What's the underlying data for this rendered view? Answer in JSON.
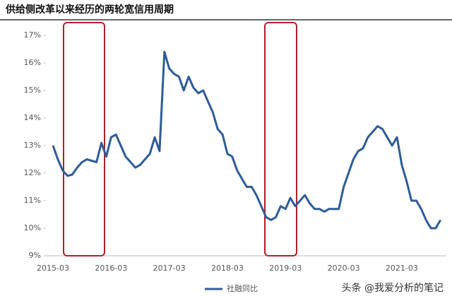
{
  "chart_data": {
    "type": "line",
    "title": "供给侧改革以来经历的两轮宽信用周期",
    "categories": [
      "2015-03",
      null,
      null,
      null,
      null,
      null,
      null,
      null,
      null,
      null,
      null,
      null,
      "2016-03",
      null,
      null,
      null,
      null,
      null,
      null,
      null,
      null,
      null,
      null,
      null,
      "2017-03",
      null,
      null,
      null,
      null,
      null,
      null,
      null,
      null,
      null,
      null,
      null,
      "2018-03",
      null,
      null,
      null,
      null,
      null,
      null,
      null,
      null,
      null,
      null,
      null,
      "2019-03",
      null,
      null,
      null,
      null,
      null,
      null,
      null,
      null,
      null,
      null,
      null,
      "2020-03",
      null,
      null,
      null,
      null,
      null,
      null,
      null,
      null,
      null,
      null,
      null,
      "2021-03",
      null,
      null,
      null,
      null,
      null,
      null,
      null,
      null
    ],
    "series": [
      {
        "name": "社融同比",
        "color": "#2f5c97",
        "values": [
          13.0,
          12.5,
          12.1,
          11.9,
          11.95,
          12.2,
          12.4,
          12.5,
          12.45,
          12.4,
          13.1,
          12.6,
          13.3,
          13.4,
          13.0,
          12.6,
          12.4,
          12.2,
          12.3,
          12.5,
          12.7,
          13.3,
          12.8,
          16.4,
          15.8,
          15.6,
          15.5,
          15.0,
          15.5,
          15.1,
          14.9,
          15.0,
          14.6,
          14.2,
          13.6,
          13.4,
          12.7,
          12.6,
          12.1,
          11.8,
          11.5,
          11.5,
          11.2,
          10.8,
          10.4,
          10.3,
          10.4,
          10.8,
          10.7,
          11.1,
          10.8,
          11.0,
          11.2,
          10.9,
          10.7,
          10.7,
          10.6,
          10.7,
          10.7,
          10.7,
          11.5,
          12.0,
          12.5,
          12.8,
          12.9,
          13.3,
          13.5,
          13.7,
          13.6,
          13.3,
          13.0,
          13.3,
          12.3,
          11.7,
          11.0,
          11.0,
          10.7,
          10.3,
          10.0,
          10.0,
          10.3
        ]
      }
    ],
    "ylim": [
      9,
      17
    ],
    "yticks": [
      {
        "value": 9,
        "label": "9%"
      },
      {
        "value": 10,
        "label": "10%"
      },
      {
        "value": 11,
        "label": "11%"
      },
      {
        "value": 12,
        "label": "12%"
      },
      {
        "value": 13,
        "label": "13%"
      },
      {
        "value": 14,
        "label": "14%"
      },
      {
        "value": 15,
        "label": "15%"
      },
      {
        "value": 16,
        "label": "16%"
      },
      {
        "value": 17,
        "label": "17%"
      }
    ],
    "grid": false,
    "watermark": "头条 @我爱分析的笔记"
  }
}
